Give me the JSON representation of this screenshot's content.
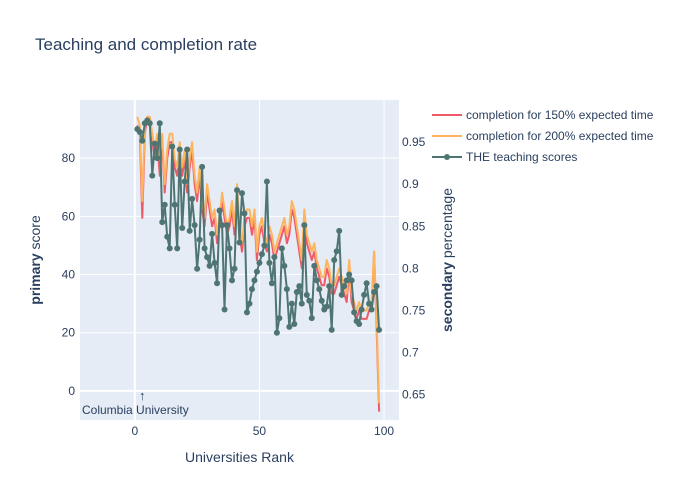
{
  "chart_data": {
    "type": "line",
    "title": "Teaching and completion rate",
    "xlabel": "Universities Rank",
    "ylabel_bold": "primary",
    "ylabel_rest": " score",
    "y2label_bold": "secondary",
    "y2label_rest": " percentage",
    "xlim": [
      -22,
      106
    ],
    "ylim": [
      -10,
      100
    ],
    "y2lim": [
      0.62,
      1.0
    ],
    "xticks": [
      0,
      50,
      100
    ],
    "yticks": [
      0,
      20,
      40,
      60,
      80
    ],
    "y2ticks": [
      0.65,
      0.7,
      0.75,
      0.8,
      0.85,
      0.9,
      0.95
    ],
    "grid": true,
    "legend_position": "right",
    "annotation": {
      "text": "Columbia University",
      "x": 3,
      "y": -1,
      "arrow": "↑"
    },
    "series": [
      {
        "name": "completion for 150% expected time",
        "axis": "secondary",
        "color": "#EF5A69",
        "x": [
          1,
          2,
          3,
          4,
          5,
          6,
          7,
          8,
          9,
          10,
          11,
          12,
          13,
          14,
          15,
          16,
          17,
          18,
          19,
          20,
          21,
          22,
          23,
          24,
          25,
          26,
          27,
          28,
          29,
          30,
          31,
          32,
          33,
          34,
          35,
          36,
          37,
          38,
          39,
          40,
          41,
          42,
          43,
          44,
          45,
          46,
          47,
          48,
          49,
          50,
          51,
          52,
          53,
          54,
          55,
          56,
          57,
          58,
          59,
          60,
          61,
          62,
          63,
          64,
          65,
          66,
          67,
          68,
          69,
          70,
          71,
          72,
          73,
          74,
          75,
          76,
          77,
          78,
          79,
          80,
          81,
          82,
          83,
          84,
          85,
          86,
          87,
          88,
          89,
          90,
          91,
          92,
          93,
          94,
          95,
          96,
          97,
          98
        ],
        "values": [
          0.97,
          0.96,
          0.86,
          0.96,
          0.98,
          0.97,
          0.95,
          0.93,
          0.95,
          0.91,
          0.95,
          0.89,
          0.93,
          0.95,
          0.95,
          0.92,
          0.91,
          0.94,
          0.91,
          0.93,
          0.89,
          0.92,
          0.94,
          0.9,
          0.88,
          0.91,
          0.87,
          0.85,
          0.89,
          0.87,
          0.85,
          0.86,
          0.83,
          0.85,
          0.88,
          0.86,
          0.84,
          0.85,
          0.87,
          0.84,
          0.89,
          0.84,
          0.82,
          0.85,
          0.86,
          0.86,
          0.84,
          0.86,
          0.81,
          0.84,
          0.85,
          0.83,
          0.82,
          0.84,
          0.83,
          0.81,
          0.82,
          0.83,
          0.84,
          0.85,
          0.83,
          0.84,
          0.87,
          0.86,
          0.84,
          0.82,
          0.8,
          0.86,
          0.83,
          0.82,
          0.81,
          0.82,
          0.8,
          0.79,
          0.78,
          0.78,
          0.8,
          0.79,
          0.77,
          0.77,
          0.78,
          0.79,
          0.78,
          0.77,
          0.76,
          0.8,
          0.76,
          0.75,
          0.74,
          0.75,
          0.74,
          0.74,
          0.74,
          0.75,
          0.75,
          0.82,
          0.73,
          0.63
        ]
      },
      {
        "name": "completion for 200% expected time",
        "axis": "secondary",
        "color": "#FEB45C",
        "x": [
          1,
          2,
          3,
          4,
          5,
          6,
          7,
          8,
          9,
          10,
          11,
          12,
          13,
          14,
          15,
          16,
          17,
          18,
          19,
          20,
          21,
          22,
          23,
          24,
          25,
          26,
          27,
          28,
          29,
          30,
          31,
          32,
          33,
          34,
          35,
          36,
          37,
          38,
          39,
          40,
          41,
          42,
          43,
          44,
          45,
          46,
          47,
          48,
          49,
          50,
          51,
          52,
          53,
          54,
          55,
          56,
          57,
          58,
          59,
          60,
          61,
          62,
          63,
          64,
          65,
          66,
          67,
          68,
          69,
          70,
          71,
          72,
          73,
          74,
          75,
          76,
          77,
          78,
          79,
          80,
          81,
          82,
          83,
          84,
          85,
          86,
          87,
          88,
          89,
          90,
          91,
          92,
          93,
          94,
          95,
          96,
          97,
          98
        ],
        "values": [
          0.98,
          0.97,
          0.88,
          0.97,
          0.98,
          0.98,
          0.96,
          0.94,
          0.96,
          0.93,
          0.96,
          0.9,
          0.94,
          0.96,
          0.96,
          0.93,
          0.92,
          0.95,
          0.92,
          0.94,
          0.9,
          0.93,
          0.95,
          0.91,
          0.89,
          0.92,
          0.88,
          0.86,
          0.9,
          0.88,
          0.86,
          0.87,
          0.84,
          0.86,
          0.89,
          0.87,
          0.85,
          0.86,
          0.88,
          0.85,
          0.9,
          0.85,
          0.83,
          0.86,
          0.87,
          0.87,
          0.85,
          0.87,
          0.82,
          0.85,
          0.86,
          0.84,
          0.83,
          0.85,
          0.84,
          0.82,
          0.83,
          0.84,
          0.85,
          0.86,
          0.84,
          0.85,
          0.88,
          0.87,
          0.85,
          0.83,
          0.81,
          0.87,
          0.84,
          0.83,
          0.82,
          0.83,
          0.81,
          0.8,
          0.79,
          0.79,
          0.81,
          0.8,
          0.78,
          0.78,
          0.79,
          0.8,
          0.79,
          0.78,
          0.77,
          0.81,
          0.77,
          0.76,
          0.75,
          0.76,
          0.75,
          0.75,
          0.75,
          0.76,
          0.76,
          0.82,
          0.74,
          0.64
        ]
      },
      {
        "name": "THE teaching scores",
        "axis": "primary",
        "color": "#4F7572",
        "markers": true,
        "x": [
          1,
          2,
          3,
          4,
          5,
          6,
          7,
          8,
          9,
          10,
          11,
          12,
          13,
          14,
          15,
          16,
          17,
          18,
          19,
          20,
          21,
          22,
          23,
          24,
          25,
          26,
          27,
          28,
          29,
          30,
          31,
          32,
          33,
          34,
          35,
          36,
          37,
          38,
          39,
          40,
          41,
          42,
          43,
          44,
          45,
          46,
          47,
          48,
          49,
          50,
          51,
          52,
          53,
          54,
          55,
          56,
          57,
          58,
          59,
          60,
          61,
          62,
          63,
          64,
          65,
          66,
          67,
          68,
          69,
          70,
          71,
          72,
          73,
          74,
          75,
          76,
          77,
          78,
          79,
          80,
          81,
          82,
          83,
          84,
          85,
          86,
          87,
          88,
          89,
          90,
          91,
          92,
          93,
          94,
          95,
          96,
          97,
          98
        ],
        "values": [
          90,
          89,
          86,
          92,
          93,
          92,
          74,
          85,
          80,
          92,
          58,
          64,
          53,
          49,
          84,
          64,
          49,
          83,
          56,
          72,
          83,
          55,
          66,
          57,
          42,
          52,
          77,
          49,
          46,
          43,
          54,
          44,
          37,
          62,
          57,
          28,
          57,
          49,
          38,
          42,
          69,
          51,
          68,
          61,
          27,
          30,
          35,
          38,
          41,
          44,
          47,
          50,
          72,
          44,
          37,
          46,
          20,
          25,
          49,
          43,
          35,
          22,
          30,
          23,
          34,
          36,
          30,
          57,
          33,
          31,
          25,
          43,
          38,
          35,
          31,
          28,
          29,
          36,
          21,
          45,
          48,
          55,
          33,
          36,
          38,
          40,
          38,
          27,
          24,
          23,
          28,
          33,
          37,
          30,
          28,
          34,
          36,
          21
        ]
      }
    ]
  }
}
